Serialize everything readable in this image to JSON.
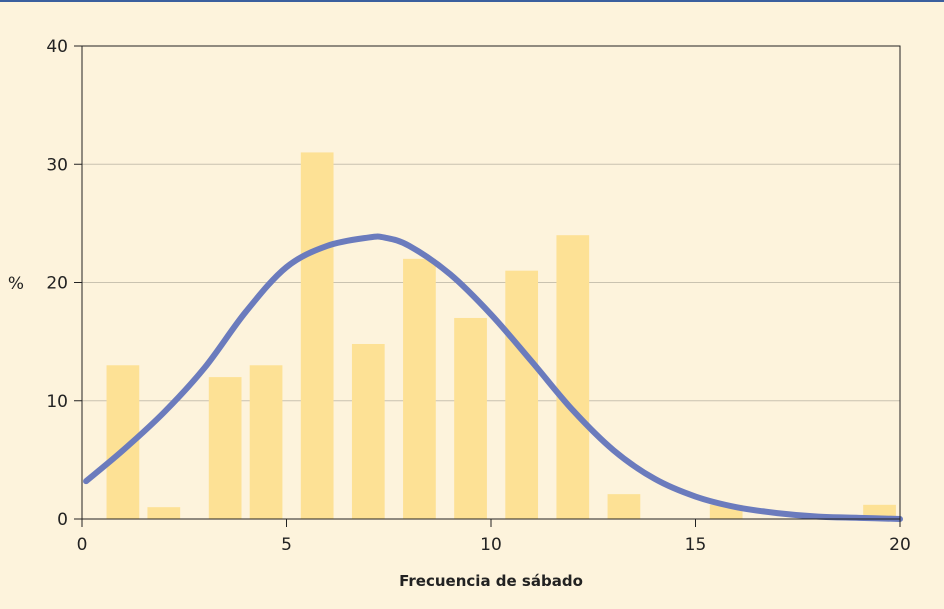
{
  "chart_data": {
    "type": "bar",
    "xlabel": "Frecuencia de sábado",
    "ylabel": "%",
    "xlim": [
      0,
      20
    ],
    "ylim": [
      0,
      40
    ],
    "x_ticks": [
      0,
      5,
      10,
      15,
      20
    ],
    "y_ticks": [
      0,
      10,
      20,
      30,
      40
    ],
    "grid": "horizontal",
    "bar_width": 1,
    "bars": [
      {
        "x": 1,
        "value": 13
      },
      {
        "x": 2,
        "value": 1
      },
      {
        "x": 3.5,
        "value": 12
      },
      {
        "x": 4.5,
        "value": 13
      },
      {
        "x": 5.75,
        "value": 31
      },
      {
        "x": 7,
        "value": 14.8
      },
      {
        "x": 8.25,
        "value": 22
      },
      {
        "x": 9.5,
        "value": 17
      },
      {
        "x": 10.75,
        "value": 21
      },
      {
        "x": 12,
        "value": 24
      },
      {
        "x": 13.25,
        "value": 2.1
      },
      {
        "x": 15.75,
        "value": 1.2
      },
      {
        "x": 19.5,
        "value": 1.2
      }
    ],
    "curve": {
      "x": [
        0.1,
        1,
        2,
        3,
        4,
        5,
        6,
        7,
        7.4,
        8,
        9,
        10,
        11,
        12,
        13,
        14,
        15,
        16,
        17,
        18,
        19,
        20
      ],
      "y": [
        3.2,
        5.8,
        9,
        12.8,
        17.5,
        21.3,
        23.1,
        23.8,
        23.8,
        23.1,
        20.7,
        17.3,
        13.3,
        9.2,
        5.8,
        3.4,
        1.9,
        1.0,
        0.5,
        0.2,
        0.1,
        0
      ]
    },
    "colors": {
      "background": "#fdf3dc",
      "plot_background": "#fdf3dc",
      "bar": "#fde195",
      "curve": "#6b7bbd",
      "grid": "#c9c2b0",
      "frame": "#3b5f9e"
    }
  }
}
